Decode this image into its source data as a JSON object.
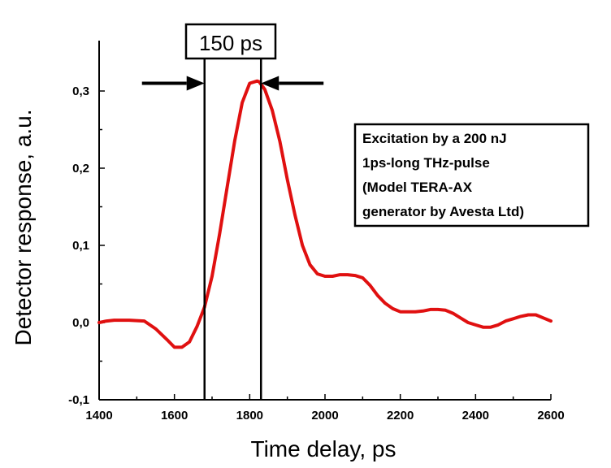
{
  "chart_data": {
    "type": "line",
    "title": "",
    "xlabel": "Time delay, ps",
    "ylabel": "Detector response, a.u.",
    "xlim": [
      1400,
      2600
    ],
    "ylim": [
      -0.1,
      0.3
    ],
    "x_ticks": [
      1400,
      1600,
      1800,
      2000,
      2200,
      2400,
      2600
    ],
    "x_tick_labels": [
      "1400",
      "1600",
      "1800",
      "2000",
      "2200",
      "2400",
      "2600"
    ],
    "y_ticks": [
      -0.1,
      0.0,
      0.1,
      0.2,
      0.3
    ],
    "y_tick_labels": [
      "-0,1",
      "0,0",
      "0,1",
      "0,2",
      "0,3"
    ],
    "grid": false,
    "series": [
      {
        "color": "#e01010",
        "x": [
          1400,
          1420,
          1440,
          1480,
          1520,
          1550,
          1580,
          1600,
          1620,
          1640,
          1660,
          1680,
          1700,
          1720,
          1740,
          1760,
          1780,
          1800,
          1820,
          1825,
          1840,
          1860,
          1880,
          1900,
          1920,
          1940,
          1960,
          1980,
          2000,
          2020,
          2040,
          2060,
          2080,
          2100,
          2120,
          2140,
          2160,
          2180,
          2200,
          2220,
          2240,
          2260,
          2280,
          2300,
          2320,
          2340,
          2360,
          2380,
          2400,
          2420,
          2440,
          2460,
          2480,
          2500,
          2520,
          2540,
          2560,
          2580,
          2600
        ],
        "y": [
          0.0,
          0.002,
          0.003,
          0.003,
          0.002,
          -0.008,
          -0.022,
          -0.032,
          -0.032,
          -0.025,
          -0.005,
          0.02,
          0.06,
          0.115,
          0.175,
          0.235,
          0.285,
          0.31,
          0.313,
          0.312,
          0.302,
          0.275,
          0.235,
          0.185,
          0.14,
          0.1,
          0.075,
          0.063,
          0.06,
          0.06,
          0.062,
          0.062,
          0.061,
          0.058,
          0.048,
          0.035,
          0.025,
          0.018,
          0.014,
          0.014,
          0.014,
          0.015,
          0.017,
          0.017,
          0.016,
          0.012,
          0.006,
          0.0,
          -0.003,
          -0.006,
          -0.006,
          -0.003,
          0.002,
          0.005,
          0.008,
          0.01,
          0.01,
          0.006,
          0.002
        ]
      }
    ],
    "annotations": {
      "vlines_x": [
        1680,
        1830
      ],
      "width_label": "150 ps",
      "arrow_y": 0.31,
      "box_lines": [
        "Excitation by a 200 nJ",
        "1ps-long THz-pulse",
        "(Model TERA-AX",
        "generator by Avesta Ltd)"
      ]
    }
  }
}
